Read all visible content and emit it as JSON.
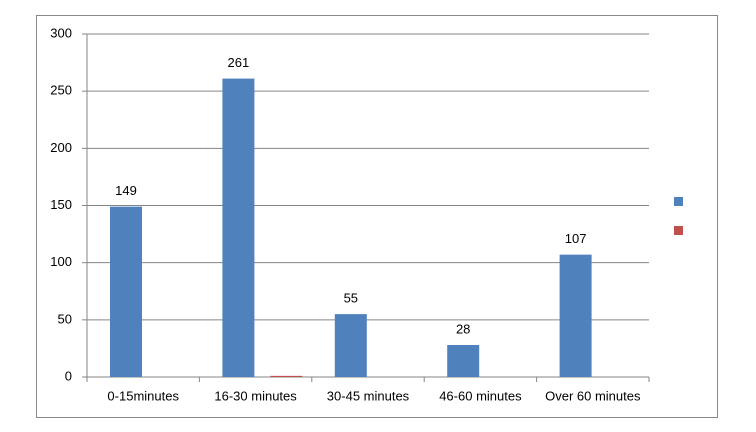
{
  "chart_data": {
    "type": "bar",
    "categories": [
      "0-15minutes",
      "16-30 minutes",
      "30-45 minutes",
      "46-60 minutes",
      "Over 60 minutes"
    ],
    "series": [
      {
        "color": "#4f81bd",
        "values": [
          149,
          261,
          55,
          28,
          107
        ]
      },
      {
        "color": "#c0504d",
        "values": [
          0,
          1,
          0,
          0,
          0
        ]
      }
    ],
    "data_labels_series": [
      0
    ],
    "ylim": [
      0,
      300
    ],
    "yticks": [
      0,
      50,
      100,
      150,
      200,
      250,
      300
    ],
    "grid": true,
    "legend": "right"
  }
}
